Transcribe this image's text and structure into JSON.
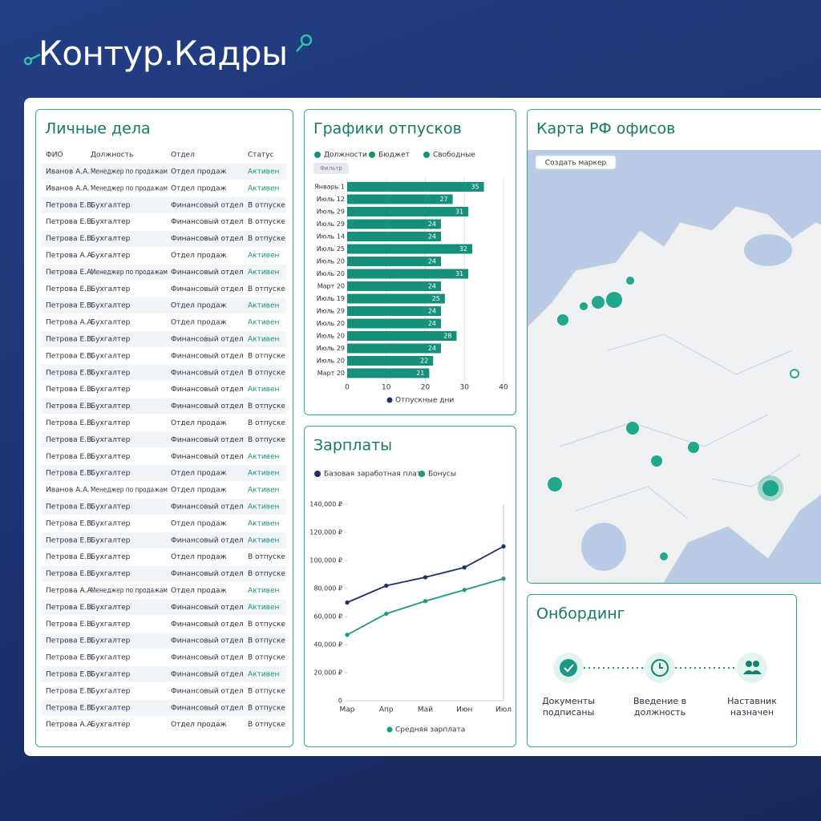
{
  "header": {
    "logo": "Контур.Кадры"
  },
  "table": {
    "title": "Личные дела",
    "columns": [
      "ФИО",
      "Должность",
      "Отдел",
      "Статус"
    ],
    "rows": [
      [
        "Иванов А.А.",
        "Менеджер по продажам",
        "Отдел продаж",
        "Активен"
      ],
      [
        "Иванов А.А.",
        "Менеджер по продажам",
        "Отдел продаж",
        "Активен"
      ],
      [
        "Петрова Е.В.",
        "Бухгалтер",
        "Финансовый отдел",
        "В отпуске"
      ],
      [
        "Петрова Е.В.",
        "Бухгалтер",
        "Финансовый отдел",
        "В отпуске"
      ],
      [
        "Петрова Е.В.",
        "Бухгалтер",
        "Финансовый отдел",
        "В отпуске"
      ],
      [
        "Петрова А.А.",
        "Бухгалтер",
        "Отдел продаж",
        "Активен"
      ],
      [
        "Петрова Е.А.",
        "Менеджер по продажам",
        "Финансовый отдел",
        "Активен"
      ],
      [
        "Петрова Е.В.",
        "Бухгалтер",
        "Финансовый отдел",
        "В отпуске"
      ],
      [
        "Петрова Е.В.",
        "Бухгалтер",
        "Отдел продаж",
        "Активен"
      ],
      [
        "Петрова А.А.",
        "Бухгалтер",
        "Отдел продаж",
        "Активен"
      ],
      [
        "Петрова Е.В.",
        "Бухгалтер",
        "Финансовый отдел",
        "Активен"
      ],
      [
        "Петрова Е.В.",
        "Бухгалтер",
        "Финансовый отдел",
        "В отпуске"
      ],
      [
        "Петрова Е.В.",
        "Бухгалтер",
        "Финансовый отдел",
        "В отпуске"
      ],
      [
        "Петрова Е.В.",
        "Бухгалтер",
        "Финансовый отдел",
        "Активен"
      ],
      [
        "Петрова Е.В.",
        "Бухгалтер",
        "Финансовый отдел",
        "В отпуске"
      ],
      [
        "Петрова Е.В.",
        "Бухгалтер",
        "Отдел продаж",
        "В отпуске"
      ],
      [
        "Петрова Е.В.",
        "Бухгалтер",
        "Финансовый отдел",
        "В отпуске"
      ],
      [
        "Петрова Е.В.",
        "Бухгалтер",
        "Финансовый отдел",
        "Активен"
      ],
      [
        "Петрова Е.В.",
        "Бухгалтер",
        "Отдел продаж",
        "Активен"
      ],
      [
        "Иванов А.А.",
        "Менеджер по продажам",
        "Отдел продаж",
        "Активен"
      ],
      [
        "Петрова Е.В.",
        "Бухгалтер",
        "Финансовый отдел",
        "Активен"
      ],
      [
        "Петрова Е.В.",
        "Бухгалтер",
        "Отдел продаж",
        "Активен"
      ],
      [
        "Петрова Е.В.",
        "Бухгалтер",
        "Финансовый отдел",
        "Активен"
      ],
      [
        "Петрова Е.В.",
        "Бухгалтер",
        "Отдел продаж",
        "В отпуске"
      ],
      [
        "Петрова Е.В.",
        "Бухгалтер",
        "Финансовый отдел",
        "В отпуске"
      ],
      [
        "Петрова А.А.",
        "Менеджер по продажам",
        "Отдел продаж",
        "Активен"
      ],
      [
        "Петрова Е.В.",
        "Бухгалтер",
        "Финансовый отдел",
        "Активен"
      ],
      [
        "Петрова Е.В.",
        "Бухгалтер",
        "Финансовый отдел",
        "В отпуске"
      ],
      [
        "Петрова Е.В.",
        "Бухгалтер",
        "Финансовый отдел",
        "В отпуске"
      ],
      [
        "Петрова Е.В.",
        "Бухгалтер",
        "Финансовый отдел",
        "В отпуске"
      ],
      [
        "Петрова Е.В.",
        "Бухгалтер",
        "Финансовый отдел",
        "Активен"
      ],
      [
        "Петрова Е.В.",
        "Бухгалтер",
        "Финансовый отдел",
        "В отпуске"
      ],
      [
        "Петрова Е.В.",
        "Бухгалтер",
        "Финансовый отдел",
        "В отпуске"
      ],
      [
        "Петрова А.А.",
        "Бухгалтер",
        "Отдел продаж",
        "В отпуске"
      ]
    ]
  },
  "chart_data": [
    {
      "type": "hbar",
      "title": "Графики отпусков",
      "legend": [
        {
          "name": "Должности",
          "color": "#17907a"
        },
        {
          "name": "Бюджет",
          "color": "#17907a"
        },
        {
          "name": "Свободные",
          "color": "#17907a"
        }
      ],
      "filter": "Фильтр",
      "categories": [
        "Январь 1",
        "Июль 12",
        "Июль 29",
        "Июль 29",
        "Июль 14",
        "Июль 25",
        "Июль 20",
        "Июль 20",
        "Март 20",
        "Июль 19",
        "Июль 29",
        "Июль 20",
        "Июль 20",
        "Июль 29",
        "Июль 20",
        "Март 20"
      ],
      "values": [
        35,
        27,
        31,
        24,
        24,
        32,
        24,
        31,
        24,
        25,
        24,
        24,
        28,
        24,
        22,
        21
      ],
      "color": "#17907a",
      "xlim": [
        0,
        40
      ],
      "xticks": [
        0,
        10,
        20,
        30,
        40
      ],
      "x_label": "Отпускные дни",
      "grid": true
    },
    {
      "type": "line",
      "title": "Зарплаты",
      "categories": [
        "Мар",
        "Апр",
        "Май",
        "Июн",
        "Июл"
      ],
      "series": [
        {
          "name": "Базовая заработная плата",
          "color": "#1c2f6b",
          "values": [
            70000,
            82000,
            88000,
            95000,
            110000
          ]
        },
        {
          "name": "Бонусы",
          "color": "#1a9a82",
          "values": [
            47000,
            62000,
            71000,
            79000,
            87000
          ]
        }
      ],
      "ylim": [
        0,
        140000
      ],
      "yticks": [
        {
          "value": 0,
          "label": "0"
        },
        {
          "value": 20000,
          "label": "20,000 ₽"
        },
        {
          "value": 40000,
          "label": "40,000 ₽"
        },
        {
          "value": 60000,
          "label": "60,000 ₽"
        },
        {
          "value": 80000,
          "label": "80,000 ₽"
        },
        {
          "value": 100000,
          "label": "100,000 ₽"
        },
        {
          "value": 120000,
          "label": "120,000 ₽"
        },
        {
          "value": 140000,
          "label": "140,000 ₽"
        }
      ],
      "x_label": "Средняя зарплата",
      "grid": false
    }
  ],
  "map": {
    "title": "Карта РФ офисов",
    "button": "Создать маркер"
  },
  "onboarding": {
    "title": "Онбординг",
    "steps": [
      "Документы подписаны",
      "Введение в должность",
      "Наставник назначен"
    ]
  }
}
